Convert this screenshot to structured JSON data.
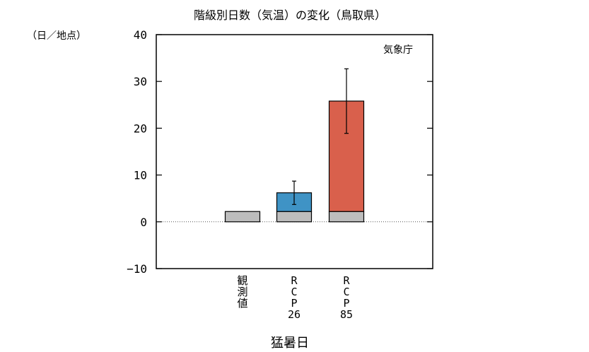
{
  "chart_data": {
    "type": "bar",
    "title": "階級別日数（気温）の変化（鳥取県）",
    "unit_label": "（日／地点）",
    "source_label": "気象庁",
    "xlabel": "猛暑日",
    "ylabel": "",
    "ylim": [
      -10,
      40
    ],
    "yticks": [
      -10,
      0,
      10,
      20,
      30,
      40
    ],
    "grid": false,
    "zero_line": "dotted",
    "categories": [
      "観測値",
      "RCP26",
      "RCP85"
    ],
    "category_labels": [
      [
        "観",
        "測",
        "値"
      ],
      [
        "R",
        "C",
        "P",
        "26"
      ],
      [
        "R",
        "C",
        "P",
        "85"
      ]
    ],
    "series": [
      {
        "values": [
          2.2,
          2.2,
          2.2
        ]
      },
      {
        "values": [
          null,
          4.0,
          23.6
        ]
      }
    ],
    "totals": [
      2.2,
      6.2,
      25.8
    ],
    "error_bars": [
      null,
      {
        "low": 3.7,
        "high": 8.7
      },
      {
        "low": 18.9,
        "high": 32.7
      }
    ],
    "colors": {
      "baseline": "#bdbdbd",
      "rcp26": "#3f93c5",
      "rcp85": "#d9604c",
      "frame": "#000000"
    }
  }
}
